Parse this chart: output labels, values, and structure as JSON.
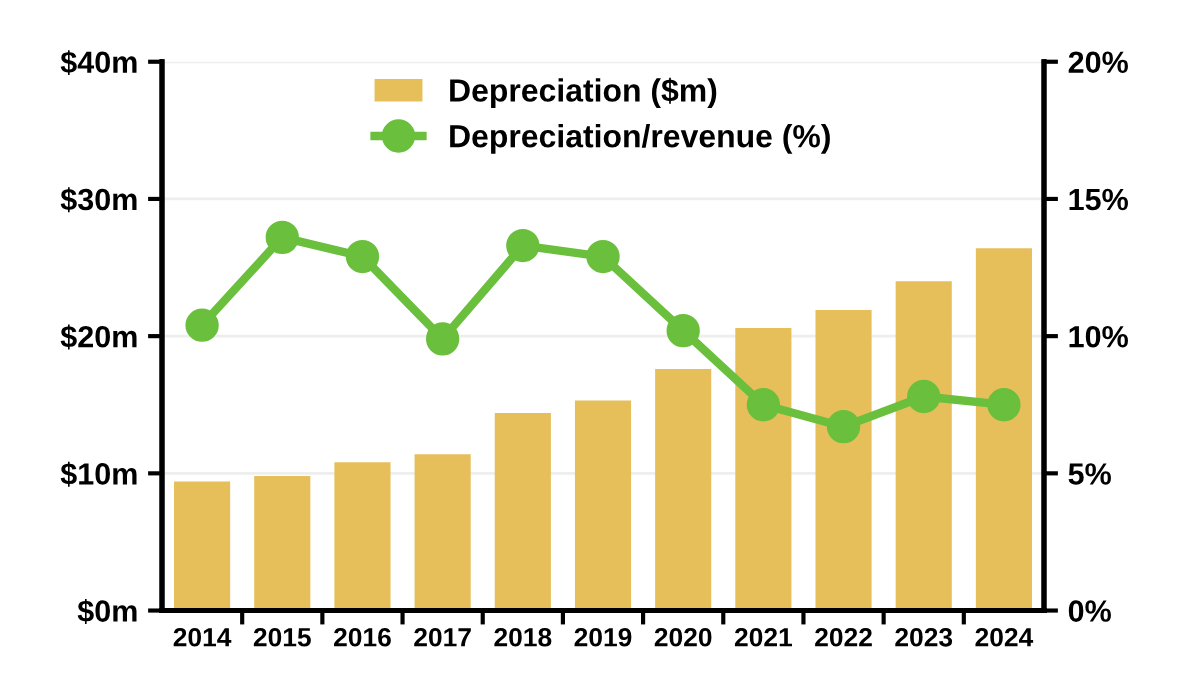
{
  "chart_data": {
    "type": "bar",
    "categories": [
      "2014",
      "2015",
      "2016",
      "2017",
      "2018",
      "2019",
      "2020",
      "2021",
      "2022",
      "2023",
      "2024"
    ],
    "series": [
      {
        "name": "Depreciation ($m)",
        "color": "#e6bf5a",
        "values": [
          9.4,
          9.8,
          10.8,
          11.4,
          14.4,
          15.3,
          17.6,
          20.6,
          21.9,
          24.0,
          26.4
        ]
      },
      {
        "name": "Depreciation/revenue (%)",
        "type": "line",
        "axis": "y2",
        "color": "#6abf3c",
        "values": [
          10.4,
          13.6,
          12.9,
          9.9,
          13.3,
          12.9,
          10.2,
          7.5,
          6.7,
          7.8,
          7.5
        ]
      }
    ],
    "ylim": [
      0,
      40
    ],
    "yticks": [
      {
        "value": 0,
        "label": "$0m"
      },
      {
        "value": 10,
        "label": "$10m"
      },
      {
        "value": 20,
        "label": "$20m"
      },
      {
        "value": 30,
        "label": "$30m"
      },
      {
        "value": 40,
        "label": "$40m"
      }
    ],
    "y2lim": [
      0,
      20
    ],
    "y2ticks": [
      {
        "value": 0,
        "label": "0%"
      },
      {
        "value": 5,
        "label": "5%"
      },
      {
        "value": 10,
        "label": "10%"
      },
      {
        "value": 15,
        "label": "15%"
      },
      {
        "value": 20,
        "label": "20%"
      }
    ],
    "grid": "y",
    "legend": "top",
    "marker": "circle",
    "line_style": "solid"
  }
}
